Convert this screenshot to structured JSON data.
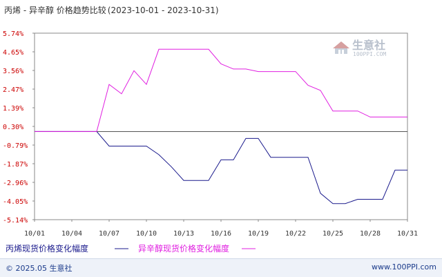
{
  "chart_data": {
    "type": "line",
    "title": "丙烯 - 异辛醇 价格趋势比较",
    "date_range": "(2023-10-01 - 2023-10-31)",
    "x_tick_labels": [
      "10/01",
      "10/04",
      "10/07",
      "10/10",
      "10/13",
      "10/16",
      "10/19",
      "10/22",
      "10/25",
      "10/28",
      "10/31"
    ],
    "y_tick_labels": [
      "5.74%",
      "4.65%",
      "3.56%",
      "2.47%",
      "1.39%",
      "0.30%",
      "-0.79%",
      "-1.87%",
      "-2.96%",
      "-4.05%",
      "-5.14%"
    ],
    "ylim": [
      -5.14,
      5.74
    ],
    "x": [
      "10/01",
      "10/02",
      "10/03",
      "10/04",
      "10/05",
      "10/06",
      "10/07",
      "10/08",
      "10/09",
      "10/10",
      "10/11",
      "10/12",
      "10/13",
      "10/14",
      "10/15",
      "10/16",
      "10/17",
      "10/18",
      "10/19",
      "10/20",
      "10/21",
      "10/22",
      "10/23",
      "10/24",
      "10/25",
      "10/26",
      "10/27",
      "10/28",
      "10/29",
      "10/30",
      "10/31"
    ],
    "series": [
      {
        "name": "丙烯现货价格变化幅度",
        "color": "#1a1a8c",
        "values": [
          0.0,
          0.0,
          0.0,
          0.0,
          0.0,
          0.0,
          -0.85,
          -0.85,
          -0.85,
          -0.85,
          -1.35,
          -2.05,
          -2.85,
          -2.85,
          -2.85,
          -1.65,
          -1.65,
          -0.4,
          -0.4,
          -1.5,
          -1.5,
          -1.5,
          -1.5,
          -3.6,
          -4.2,
          -4.2,
          -3.95,
          -3.95,
          -3.95,
          -2.25,
          -2.25
        ]
      },
      {
        "name": "异辛醇现货价格变化幅度",
        "color": "#e01ee0",
        "values": [
          0.0,
          0.0,
          0.0,
          0.0,
          0.0,
          0.0,
          2.75,
          2.2,
          3.55,
          2.75,
          4.8,
          4.8,
          4.8,
          4.8,
          4.8,
          3.95,
          3.65,
          3.65,
          3.5,
          3.5,
          3.5,
          3.5,
          2.7,
          2.4,
          1.2,
          1.2,
          1.2,
          0.85,
          0.85,
          0.85,
          0.85
        ]
      }
    ],
    "grid": false,
    "legend_position": "bottom-left"
  },
  "watermark": {
    "name": "生意社",
    "url": "100PPI.COM"
  },
  "footer": {
    "copyright": "© 2025.05 生意社",
    "site": "www.100PPI.com"
  },
  "colors": {
    "axis": "#888888",
    "zero_line": "#555555",
    "ytick": "#cc0000",
    "footer_bg": "#eef2f9"
  }
}
